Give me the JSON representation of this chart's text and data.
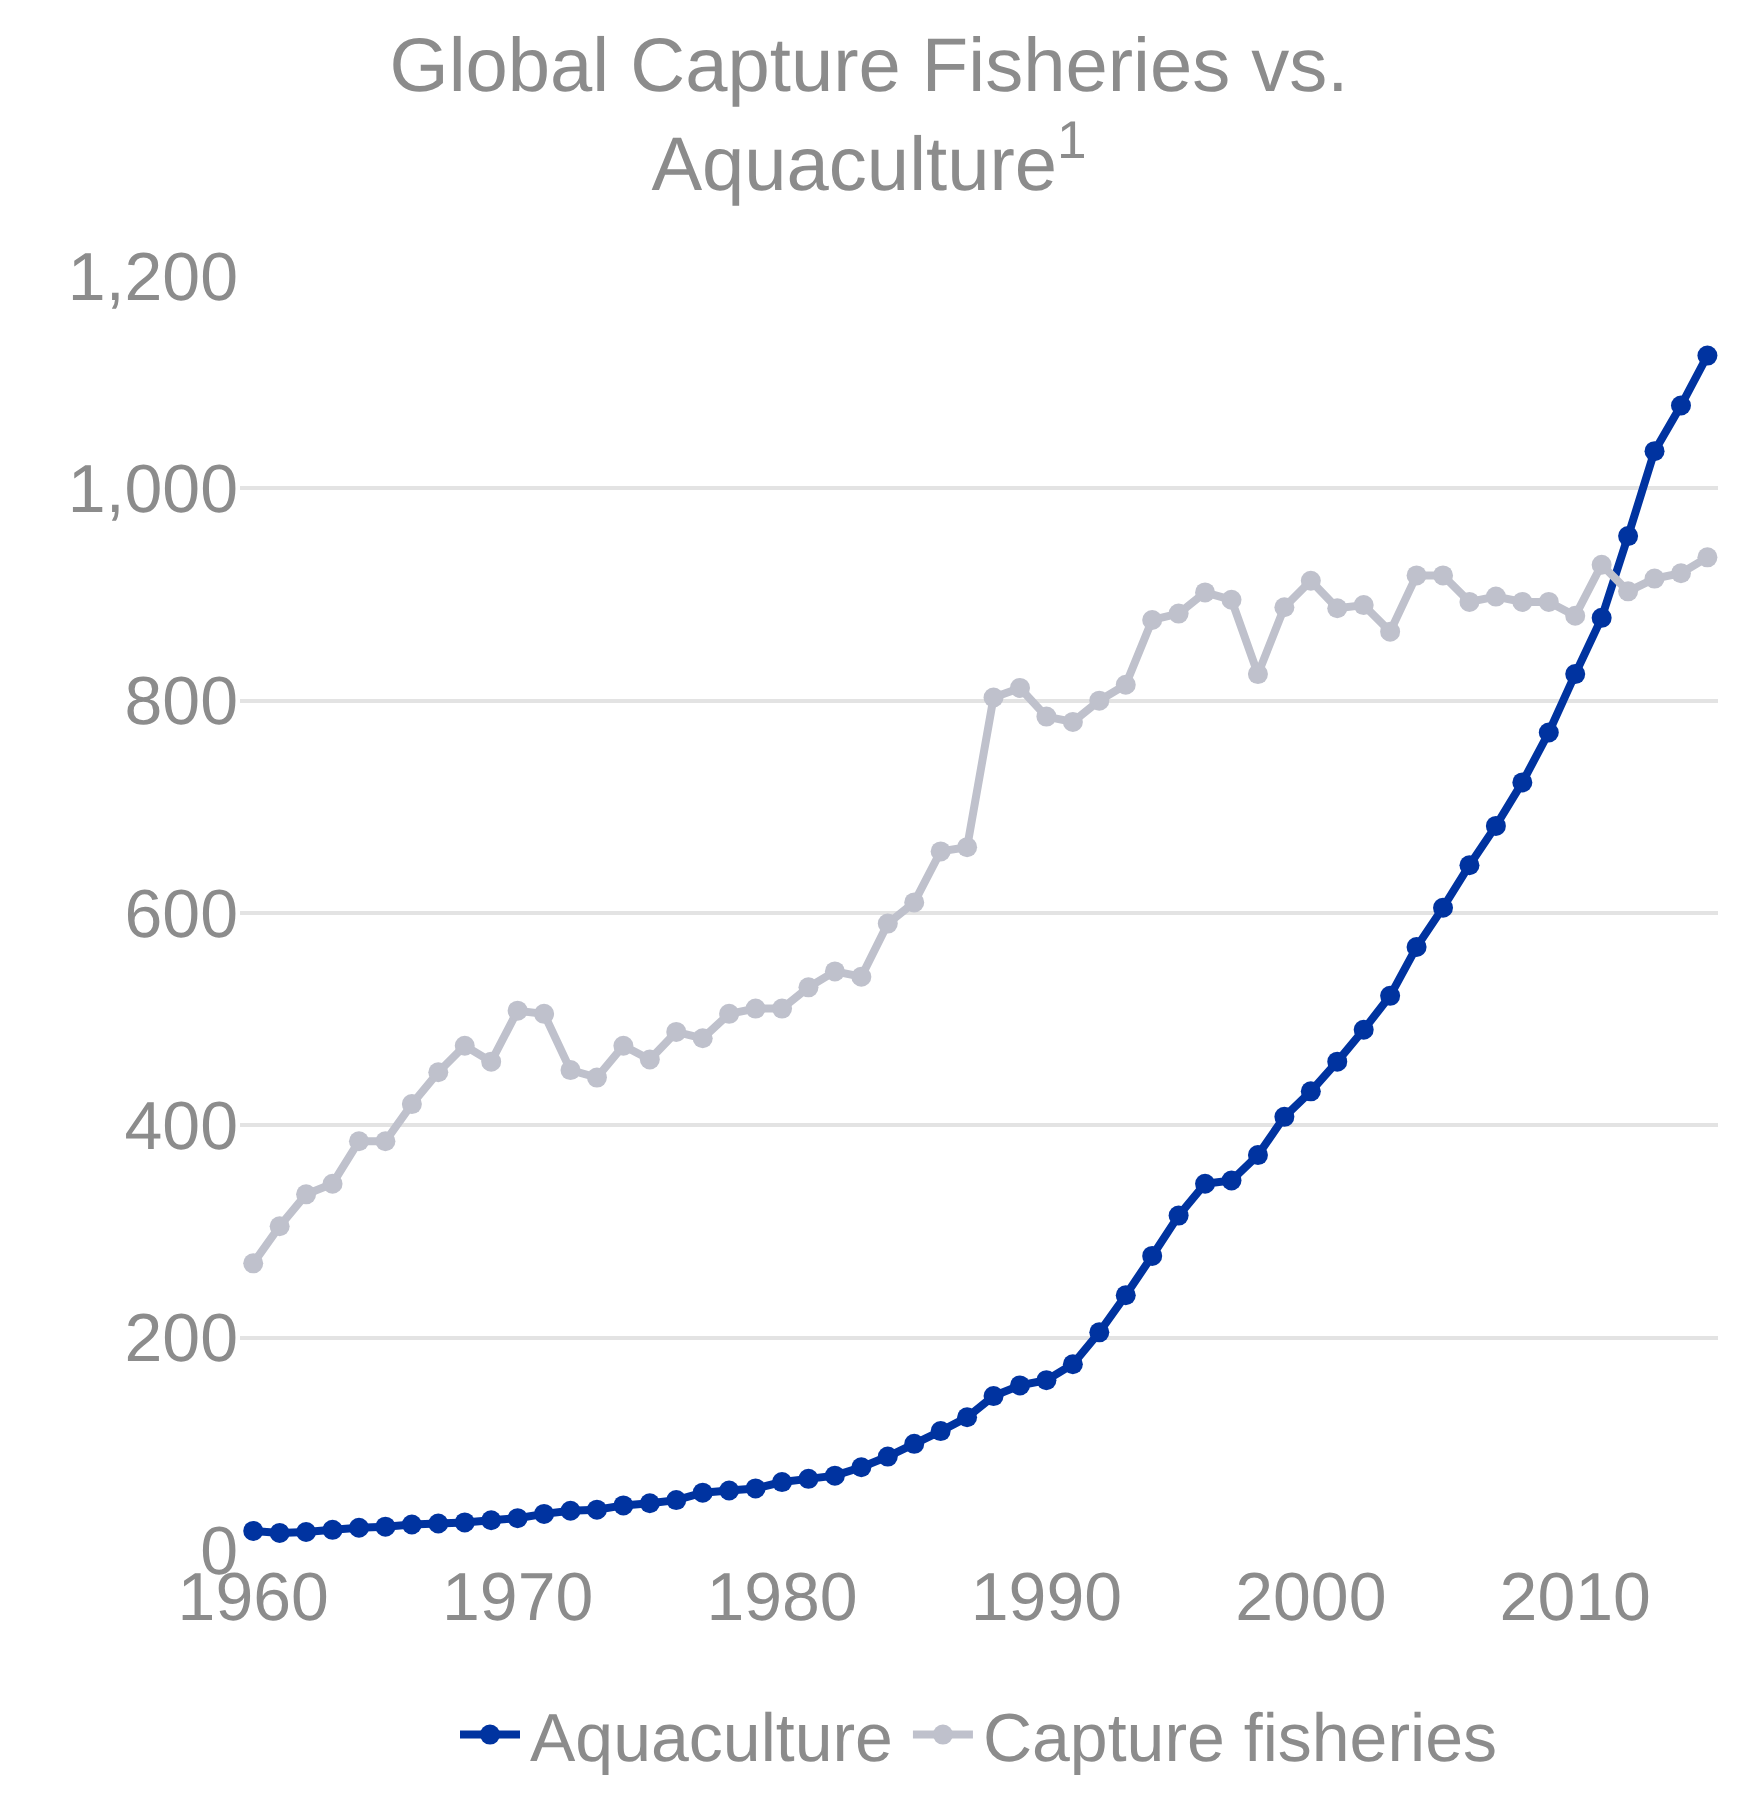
{
  "chart_data": {
    "type": "line",
    "title": "Global Capture Fisheries vs. Aquaculture$^{1}$",
    "x": [
      1960,
      1961,
      1962,
      1963,
      1964,
      1965,
      1966,
      1967,
      1968,
      1969,
      1970,
      1971,
      1972,
      1973,
      1974,
      1975,
      1976,
      1977,
      1978,
      1979,
      1980,
      1981,
      1982,
      1983,
      1984,
      1985,
      1986,
      1987,
      1988,
      1989,
      1990,
      1991,
      1992,
      1993,
      1994,
      1995,
      1996,
      1997,
      1998,
      1999,
      2000,
      2001,
      2002,
      2003,
      2004,
      2005,
      2006,
      2007,
      2008,
      2009,
      2010,
      2011,
      2012,
      2013,
      2014,
      2015
    ],
    "series": [
      {
        "name": "Aquaculture",
        "color": "#0033a0",
        "values": [
          18,
          16,
          17,
          19,
          21,
          22,
          24,
          25,
          26,
          28,
          30,
          34,
          37,
          38,
          42,
          44,
          47,
          54,
          56,
          58,
          64,
          67,
          70,
          78,
          88,
          100,
          112,
          125,
          145,
          155,
          160,
          175,
          205,
          240,
          277,
          315,
          345,
          348,
          372,
          408,
          432,
          460,
          490,
          522,
          568,
          605,
          645,
          682,
          723,
          770,
          825,
          878,
          955,
          1035,
          1078,
          1125
        ]
      },
      {
        "name": "Capture fisheries",
        "color": "#bfc1cc",
        "values": [
          270,
          305,
          335,
          345,
          385,
          385,
          420,
          450,
          475,
          460,
          508,
          505,
          452,
          445,
          475,
          462,
          488,
          482,
          505,
          510,
          510,
          530,
          545,
          540,
          590,
          610,
          658,
          662,
          803,
          812,
          785,
          780,
          800,
          815,
          876,
          882,
          902,
          895,
          825,
          888,
          913,
          887,
          890,
          865,
          918,
          918,
          893,
          898,
          893,
          893,
          880,
          928,
          903,
          915,
          920,
          935
        ]
      }
    ],
    "xlim": [
      1959.5,
      2015.4
    ],
    "xticks": [
      1960,
      1970,
      1980,
      1990,
      2000,
      2010
    ],
    "ylim": [
      0,
      1200
    ],
    "yticks": [
      {
        "value": 0,
        "label": "0"
      },
      {
        "value": 200,
        "label": "200"
      },
      {
        "value": 400,
        "label": "400"
      },
      {
        "value": 600,
        "label": "600"
      },
      {
        "value": 800,
        "label": "800"
      },
      {
        "value": 1000,
        "label": "1,000"
      },
      {
        "value": 1200,
        "label": "1,200"
      }
    ],
    "grid": "y",
    "legend": "bottom",
    "marker": "circle",
    "line_style": "solid"
  }
}
